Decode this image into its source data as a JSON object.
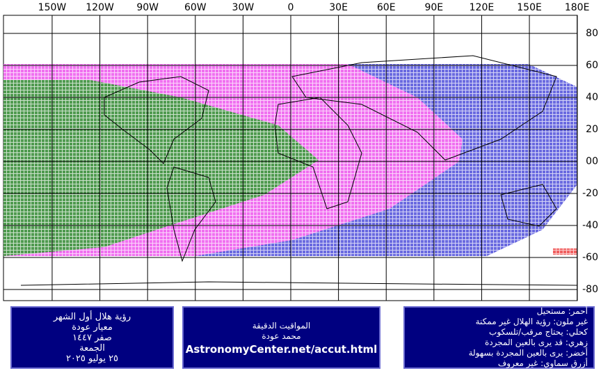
{
  "map": {
    "lon_ticks": [
      {
        "value": -150,
        "label": "150W"
      },
      {
        "value": -120,
        "label": "120W"
      },
      {
        "value": -90,
        "label": "90W"
      },
      {
        "value": -60,
        "label": "60W"
      },
      {
        "value": -30,
        "label": "30W"
      },
      {
        "value": 0,
        "label": "0"
      },
      {
        "value": 30,
        "label": "30E"
      },
      {
        "value": 60,
        "label": "60E"
      },
      {
        "value": 90,
        "label": "90E"
      },
      {
        "value": 120,
        "label": "120E"
      },
      {
        "value": 150,
        "label": "150E"
      },
      {
        "value": 180,
        "label": "180E"
      }
    ],
    "lat_ticks": [
      80,
      60,
      40,
      20,
      {
        "value": 0,
        "label": "00"
      },
      -20,
      -40,
      -60,
      -80
    ]
  },
  "boxes": {
    "left": [
      "رؤية هلال أول الشهر",
      "معيار عودة",
      "صفر ١٤٤٧",
      "الجمعة",
      "٢٥ يوليو ٢٠٢٥"
    ],
    "middle": [
      "المواقيت الدقيقة",
      "محمد عودة",
      "AstronomyCenter.net/accut.html"
    ],
    "right": [
      "أحمر: مستحيل",
      "غير ملون: رؤية الهلال غير ممكنة",
      "كحلي: يحتاج مرقب/تلسكوب",
      "زهري: قد يرى بالعين المجردة",
      "أخضر: يرى بالعين المجردة بسهولة",
      "أزرق سماوي: غير معروف"
    ]
  }
}
